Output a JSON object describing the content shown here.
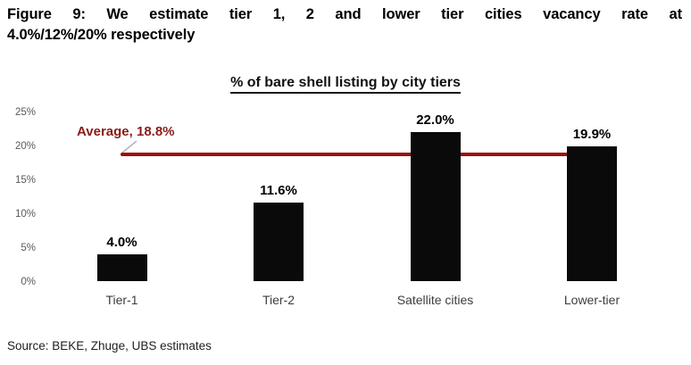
{
  "figure": {
    "title_line1": "Figure 9: We estimate tier 1, 2 and lower tier cities vacancy rate at",
    "title_line2": "4.0%/12%/20% respectively",
    "source": "Source: BEKE, Zhuge, UBS estimates"
  },
  "chart_data": {
    "type": "bar",
    "title": "% of bare shell listing by city tiers",
    "categories": [
      "Tier-1",
      "Tier-2",
      "Satellite cities",
      "Lower-tier"
    ],
    "values": [
      4.0,
      11.6,
      22.0,
      19.9
    ],
    "data_labels": [
      "4.0%",
      "11.6%",
      "22.0%",
      "19.9%"
    ],
    "average": 18.8,
    "average_label": "Average, 18.8%",
    "xlabel": "",
    "ylabel": "",
    "ylim": [
      0,
      25
    ],
    "ytick_labels": [
      "0%",
      "5%",
      "10%",
      "15%",
      "20%",
      "25%"
    ],
    "grid": false,
    "legend": false,
    "bar_color": "#0a0a0a",
    "average_line_color": "#9b0f0f",
    "average_label_color": "#8c1a1a"
  }
}
